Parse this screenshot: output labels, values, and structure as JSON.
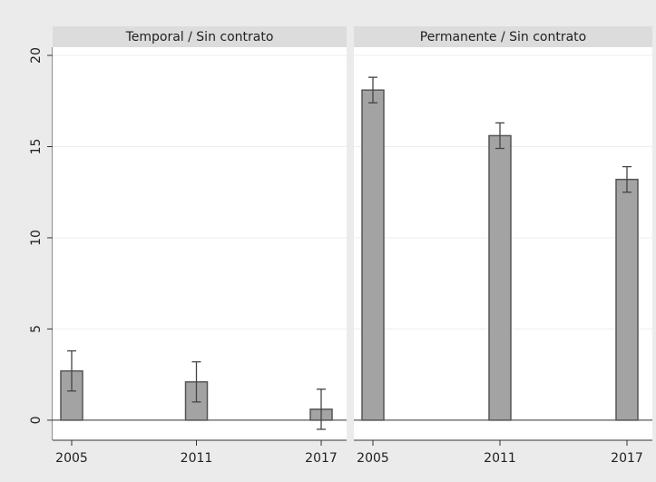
{
  "chart_data": {
    "type": "bar",
    "ylim": [
      -1.1,
      20.45
    ],
    "yticks": [
      0,
      5,
      10,
      15,
      20
    ],
    "grid": true,
    "color": "#a3a3a3",
    "panels": [
      {
        "title": "Temporal / Sin contrato",
        "categories": [
          "2005",
          "2011",
          "2017"
        ],
        "values": [
          2.7,
          2.1,
          0.6
        ],
        "errors": [
          1.1,
          1.1,
          1.1
        ]
      },
      {
        "title": "Permanente / Sin contrato",
        "categories": [
          "2005",
          "2011",
          "2017"
        ],
        "values": [
          18.1,
          15.6,
          13.2
        ],
        "errors": [
          0.7,
          0.7,
          0.7
        ]
      }
    ]
  }
}
